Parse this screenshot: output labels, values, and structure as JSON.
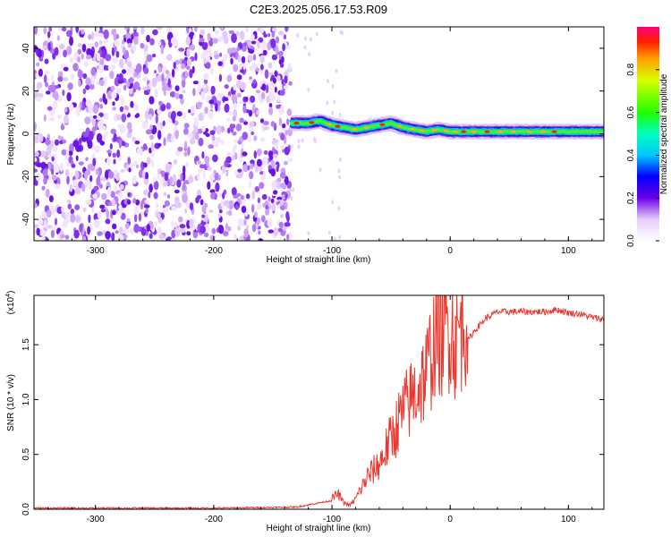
{
  "title": "C2E3.2025.056.17.53.R09",
  "chart_data": [
    {
      "type": "heatmap",
      "xlabel": "Height of straight line (km)",
      "ylabel": "Frequency (Hz)",
      "xlim": [
        -352,
        130
      ],
      "ylim": [
        -50,
        50
      ],
      "xticks": [
        -300,
        -200,
        -100,
        0,
        100
      ],
      "yticks": [
        -40,
        -20,
        0,
        20,
        40
      ],
      "noise_region_x": [
        -352,
        -135
      ],
      "signal_trace": {
        "x": [
          -135,
          -120,
          -110,
          -100,
          -90,
          -80,
          -70,
          -60,
          -50,
          -40,
          -30,
          -20,
          -10,
          0,
          20,
          50,
          80,
          100,
          130
        ],
        "freq": [
          5,
          5,
          6,
          4,
          3,
          2,
          3,
          4,
          5,
          3,
          2,
          1,
          2,
          1,
          1,
          1,
          1,
          1,
          1
        ]
      },
      "colorbar": {
        "label": "Normalized spectral amplitude",
        "range": [
          0.0,
          1.0
        ],
        "ticks": [
          0.0,
          0.2,
          0.4,
          0.6,
          0.8
        ]
      }
    },
    {
      "type": "line",
      "xlabel": "Height of straight line (km)",
      "ylabel": "SNR (10 * v/v)",
      "y_multiplier_label": "(x10",
      "y_multiplier_exp": "4",
      "y_multiplier_close": ")",
      "xlim": [
        -352,
        130
      ],
      "ylim": [
        0,
        1.95
      ],
      "xticks": [
        -300,
        -200,
        -100,
        0,
        100
      ],
      "yticks": [
        0.0,
        0.5,
        1.0,
        1.5
      ],
      "ytick_labels": [
        "0.0",
        "0.5",
        "1.0",
        "1.5"
      ],
      "color": "#e8382f",
      "series": [
        {
          "x": [
            -352,
            -300,
            -200,
            -130,
            -110,
            -100,
            -95,
            -90,
            -85,
            -80,
            -70,
            -60,
            -50,
            -40,
            -30,
            -20,
            -15,
            -10,
            -5,
            0,
            5,
            10,
            20,
            30,
            40,
            60,
            80,
            90,
            100,
            110,
            120,
            130
          ],
          "values": [
            0.01,
            0.01,
            0.01,
            0.02,
            0.06,
            0.08,
            0.12,
            0.05,
            0.03,
            0.08,
            0.25,
            0.35,
            0.55,
            0.75,
            0.9,
            1.05,
            1.25,
            1.4,
            1.35,
            1.45,
            1.3,
            1.45,
            1.62,
            1.74,
            1.8,
            1.8,
            1.8,
            1.82,
            1.79,
            1.78,
            1.75,
            1.73
          ]
        }
      ]
    }
  ]
}
